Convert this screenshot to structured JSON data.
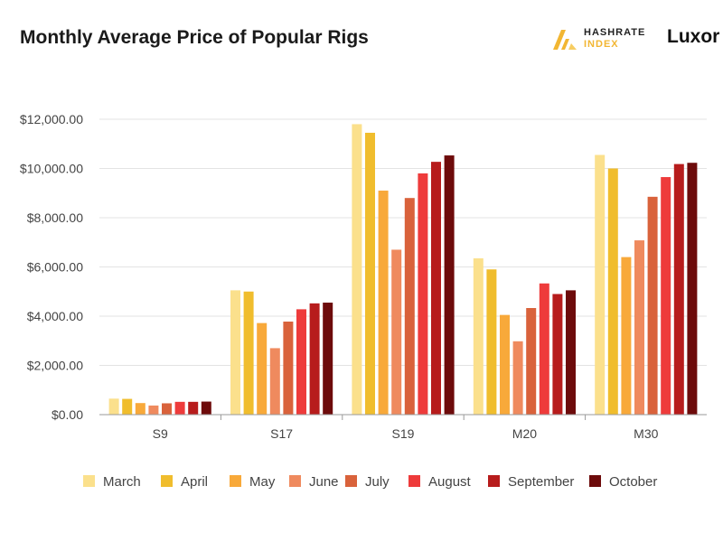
{
  "header": {
    "title": "Monthly Average Price of Popular Rigs",
    "brand_hashrate_line1": "HASHRATE",
    "brand_hashrate_line2": "INDEX",
    "brand_luxor": "Luxor",
    "hashrate_icon": "hashrate-index-logo-icon"
  },
  "chart_data": {
    "type": "bar",
    "title": "Monthly Average Price of Popular Rigs",
    "xlabel": "",
    "ylabel": "",
    "ylim": [
      0,
      12000
    ],
    "yticks": [
      0,
      2000,
      4000,
      6000,
      8000,
      10000,
      12000
    ],
    "ytick_labels": [
      "$0.00",
      "$2,000.00",
      "$4,000.00",
      "$6,000.00",
      "$8,000.00",
      "$10,000.00",
      "$12,000.00"
    ],
    "grid": true,
    "legend_position": "bottom",
    "categories": [
      "S9",
      "S17",
      "S19",
      "M20",
      "M30"
    ],
    "series": [
      {
        "name": "March",
        "color": "#fbe08c",
        "values": [
          650,
          5050,
          11800,
          6350,
          10550
        ]
      },
      {
        "name": "April",
        "color": "#f0bd2d",
        "values": [
          640,
          5000,
          11450,
          5900,
          10000
        ]
      },
      {
        "name": "May",
        "color": "#f8a93a",
        "values": [
          470,
          3720,
          9100,
          4050,
          6400
        ]
      },
      {
        "name": "June",
        "color": "#ef8a5e",
        "values": [
          370,
          2700,
          6700,
          2980,
          7080
        ]
      },
      {
        "name": "July",
        "color": "#d9623b",
        "values": [
          460,
          3780,
          8800,
          4330,
          8850
        ]
      },
      {
        "name": "August",
        "color": "#ee3b3b",
        "values": [
          520,
          4280,
          9800,
          5330,
          9650
        ]
      },
      {
        "name": "September",
        "color": "#b71c1c",
        "values": [
          520,
          4520,
          10270,
          4900,
          10180
        ]
      },
      {
        "name": "October",
        "color": "#6d0b0b",
        "values": [
          530,
          4550,
          10530,
          5050,
          10230
        ]
      }
    ]
  }
}
